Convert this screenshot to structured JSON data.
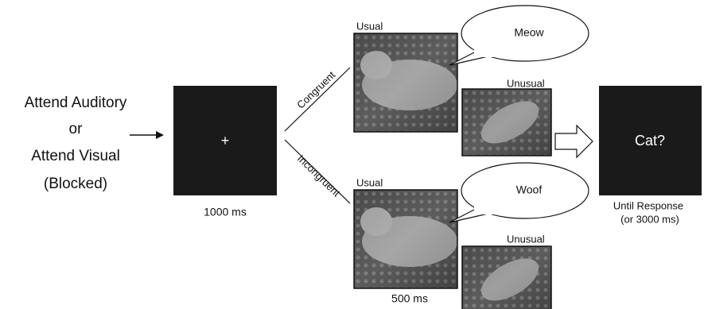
{
  "instruction": {
    "lines": [
      "Attend Auditory",
      "or",
      "Attend Visual",
      "(Blocked)"
    ]
  },
  "fixation": {
    "symbol": "+",
    "duration": "1000 ms"
  },
  "branches": {
    "congruent": "Congruent",
    "incongruent": "Incongruent"
  },
  "congruent_trial": {
    "usual_label": "Usual",
    "sound": "Meow",
    "unusual_label": "Unusual"
  },
  "incongruent_trial": {
    "usual_label": "Usual",
    "sound": "Woof",
    "unusual_label": "Unusual"
  },
  "stimulus_duration": "500 ms",
  "response": {
    "prompt": "Cat?",
    "duration_lines": [
      "Until Response",
      "(or 3000 ms)"
    ]
  }
}
